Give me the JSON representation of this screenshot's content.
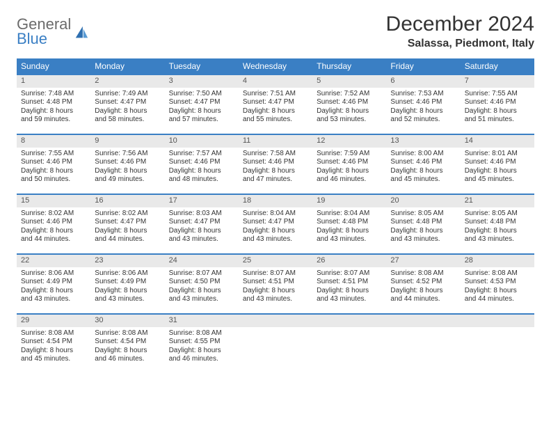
{
  "logo": {
    "line1": "General",
    "line2": "Blue"
  },
  "title": "December 2024",
  "location": "Salassa, Piedmont, Italy",
  "colors": {
    "header_bg": "#3a7fc4",
    "header_fg": "#ffffff",
    "daynum_bg": "#e9e9e9",
    "row_border": "#3a7fc4",
    "logo_gray": "#6b6b6b",
    "logo_blue": "#3a7fc4"
  },
  "weekdays": [
    "Sunday",
    "Monday",
    "Tuesday",
    "Wednesday",
    "Thursday",
    "Friday",
    "Saturday"
  ],
  "weeks": [
    [
      {
        "n": "1",
        "sunrise": "7:48 AM",
        "sunset": "4:48 PM",
        "daylight": "8 hours and 59 minutes."
      },
      {
        "n": "2",
        "sunrise": "7:49 AM",
        "sunset": "4:47 PM",
        "daylight": "8 hours and 58 minutes."
      },
      {
        "n": "3",
        "sunrise": "7:50 AM",
        "sunset": "4:47 PM",
        "daylight": "8 hours and 57 minutes."
      },
      {
        "n": "4",
        "sunrise": "7:51 AM",
        "sunset": "4:47 PM",
        "daylight": "8 hours and 55 minutes."
      },
      {
        "n": "5",
        "sunrise": "7:52 AM",
        "sunset": "4:46 PM",
        "daylight": "8 hours and 53 minutes."
      },
      {
        "n": "6",
        "sunrise": "7:53 AM",
        "sunset": "4:46 PM",
        "daylight": "8 hours and 52 minutes."
      },
      {
        "n": "7",
        "sunrise": "7:55 AM",
        "sunset": "4:46 PM",
        "daylight": "8 hours and 51 minutes."
      }
    ],
    [
      {
        "n": "8",
        "sunrise": "7:55 AM",
        "sunset": "4:46 PM",
        "daylight": "8 hours and 50 minutes."
      },
      {
        "n": "9",
        "sunrise": "7:56 AM",
        "sunset": "4:46 PM",
        "daylight": "8 hours and 49 minutes."
      },
      {
        "n": "10",
        "sunrise": "7:57 AM",
        "sunset": "4:46 PM",
        "daylight": "8 hours and 48 minutes."
      },
      {
        "n": "11",
        "sunrise": "7:58 AM",
        "sunset": "4:46 PM",
        "daylight": "8 hours and 47 minutes."
      },
      {
        "n": "12",
        "sunrise": "7:59 AM",
        "sunset": "4:46 PM",
        "daylight": "8 hours and 46 minutes."
      },
      {
        "n": "13",
        "sunrise": "8:00 AM",
        "sunset": "4:46 PM",
        "daylight": "8 hours and 45 minutes."
      },
      {
        "n": "14",
        "sunrise": "8:01 AM",
        "sunset": "4:46 PM",
        "daylight": "8 hours and 45 minutes."
      }
    ],
    [
      {
        "n": "15",
        "sunrise": "8:02 AM",
        "sunset": "4:46 PM",
        "daylight": "8 hours and 44 minutes."
      },
      {
        "n": "16",
        "sunrise": "8:02 AM",
        "sunset": "4:47 PM",
        "daylight": "8 hours and 44 minutes."
      },
      {
        "n": "17",
        "sunrise": "8:03 AM",
        "sunset": "4:47 PM",
        "daylight": "8 hours and 43 minutes."
      },
      {
        "n": "18",
        "sunrise": "8:04 AM",
        "sunset": "4:47 PM",
        "daylight": "8 hours and 43 minutes."
      },
      {
        "n": "19",
        "sunrise": "8:04 AM",
        "sunset": "4:48 PM",
        "daylight": "8 hours and 43 minutes."
      },
      {
        "n": "20",
        "sunrise": "8:05 AM",
        "sunset": "4:48 PM",
        "daylight": "8 hours and 43 minutes."
      },
      {
        "n": "21",
        "sunrise": "8:05 AM",
        "sunset": "4:48 PM",
        "daylight": "8 hours and 43 minutes."
      }
    ],
    [
      {
        "n": "22",
        "sunrise": "8:06 AM",
        "sunset": "4:49 PM",
        "daylight": "8 hours and 43 minutes."
      },
      {
        "n": "23",
        "sunrise": "8:06 AM",
        "sunset": "4:49 PM",
        "daylight": "8 hours and 43 minutes."
      },
      {
        "n": "24",
        "sunrise": "8:07 AM",
        "sunset": "4:50 PM",
        "daylight": "8 hours and 43 minutes."
      },
      {
        "n": "25",
        "sunrise": "8:07 AM",
        "sunset": "4:51 PM",
        "daylight": "8 hours and 43 minutes."
      },
      {
        "n": "26",
        "sunrise": "8:07 AM",
        "sunset": "4:51 PM",
        "daylight": "8 hours and 43 minutes."
      },
      {
        "n": "27",
        "sunrise": "8:08 AM",
        "sunset": "4:52 PM",
        "daylight": "8 hours and 44 minutes."
      },
      {
        "n": "28",
        "sunrise": "8:08 AM",
        "sunset": "4:53 PM",
        "daylight": "8 hours and 44 minutes."
      }
    ],
    [
      {
        "n": "29",
        "sunrise": "8:08 AM",
        "sunset": "4:54 PM",
        "daylight": "8 hours and 45 minutes."
      },
      {
        "n": "30",
        "sunrise": "8:08 AM",
        "sunset": "4:54 PM",
        "daylight": "8 hours and 46 minutes."
      },
      {
        "n": "31",
        "sunrise": "8:08 AM",
        "sunset": "4:55 PM",
        "daylight": "8 hours and 46 minutes."
      },
      null,
      null,
      null,
      null
    ]
  ],
  "labels": {
    "sunrise": "Sunrise: ",
    "sunset": "Sunset: ",
    "daylight": "Daylight: "
  }
}
